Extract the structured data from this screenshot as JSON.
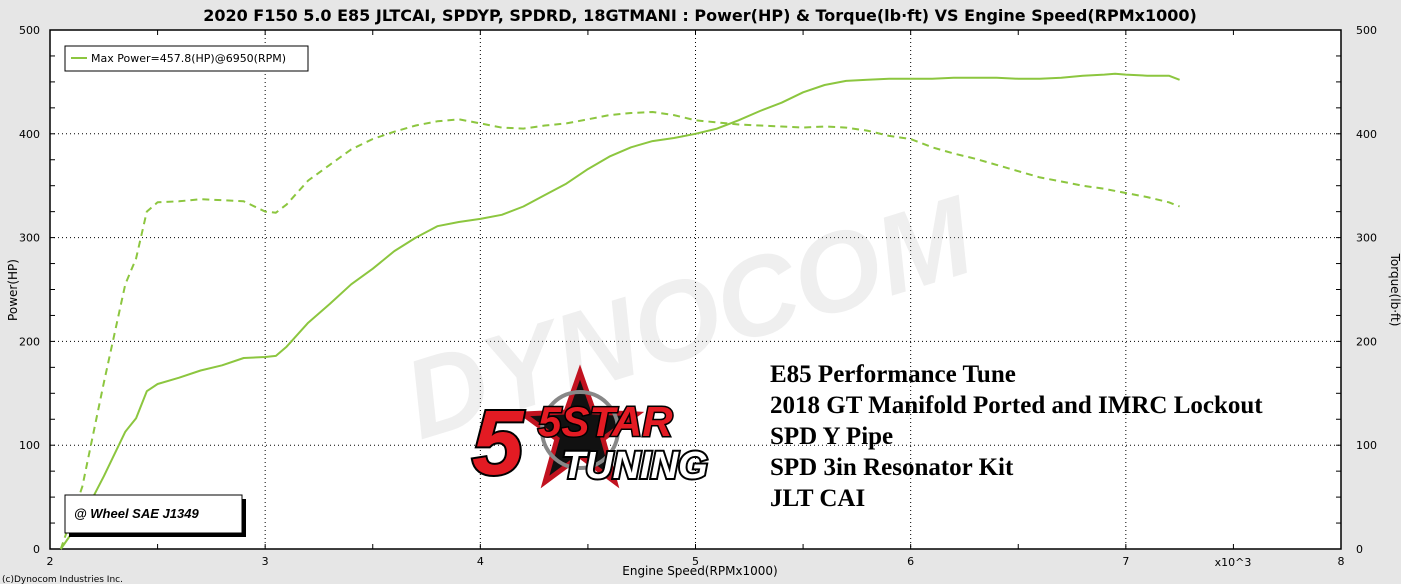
{
  "chart_data": {
    "type": "line",
    "title": "2020 F150 5.0 E85 JLTCAI, SPDYP, SPDRD, 18GTMANI : Power(HP) & Torque(lb·ft) VS Engine Speed(RPMx1000)",
    "xlabel": "Engine Speed(RPMx1000)",
    "ylabel_left": "Power(HP)",
    "ylabel_right": "Torque(lb·ft)",
    "x_multiplier_label": "x10^3",
    "xlim": [
      2,
      8
    ],
    "ylim": [
      0,
      500
    ],
    "x_ticks": [
      "2",
      "3",
      "4",
      "5",
      "6",
      "7",
      "8"
    ],
    "y_ticks": [
      "0",
      "100",
      "200",
      "300",
      "400",
      "500"
    ],
    "grid": true,
    "legend_placement": "top-left",
    "legend_entries": [
      "Max Power=457.8(HP)@6950(RPM)"
    ],
    "series_color": "#8cc63f",
    "series": [
      {
        "name": "Max Power=457.8(HP)@6950(RPM)",
        "style": "solid",
        "points": [
          [
            2.05,
            0
          ],
          [
            2.15,
            30
          ],
          [
            2.25,
            70
          ],
          [
            2.35,
            113
          ],
          [
            2.4,
            126
          ],
          [
            2.45,
            152
          ],
          [
            2.5,
            159
          ],
          [
            2.6,
            165
          ],
          [
            2.7,
            172
          ],
          [
            2.8,
            177
          ],
          [
            2.9,
            184
          ],
          [
            3.0,
            185
          ],
          [
            3.05,
            186
          ],
          [
            3.1,
            195
          ],
          [
            3.2,
            218
          ],
          [
            3.3,
            236
          ],
          [
            3.4,
            255
          ],
          [
            3.5,
            270
          ],
          [
            3.6,
            287
          ],
          [
            3.7,
            300
          ],
          [
            3.8,
            311
          ],
          [
            3.9,
            315
          ],
          [
            4.0,
            318
          ],
          [
            4.1,
            322
          ],
          [
            4.2,
            330
          ],
          [
            4.3,
            341
          ],
          [
            4.4,
            352
          ],
          [
            4.5,
            366
          ],
          [
            4.6,
            378
          ],
          [
            4.7,
            387
          ],
          [
            4.8,
            393
          ],
          [
            4.9,
            396
          ],
          [
            5.0,
            400
          ],
          [
            5.1,
            405
          ],
          [
            5.2,
            413
          ],
          [
            5.3,
            422
          ],
          [
            5.4,
            430
          ],
          [
            5.5,
            440
          ],
          [
            5.6,
            447
          ],
          [
            5.7,
            451
          ],
          [
            5.8,
            452
          ],
          [
            5.9,
            453
          ],
          [
            6.0,
            453
          ],
          [
            6.1,
            453
          ],
          [
            6.2,
            454
          ],
          [
            6.3,
            454
          ],
          [
            6.4,
            454
          ],
          [
            6.5,
            453
          ],
          [
            6.6,
            453
          ],
          [
            6.7,
            454
          ],
          [
            6.8,
            456
          ],
          [
            6.9,
            457
          ],
          [
            6.95,
            457.8
          ],
          [
            7.0,
            457
          ],
          [
            7.1,
            456
          ],
          [
            7.2,
            456
          ],
          [
            7.25,
            452
          ]
        ]
      },
      {
        "name": "",
        "style": "dashed",
        "points": [
          [
            2.05,
            0
          ],
          [
            2.15,
            60
          ],
          [
            2.25,
            160
          ],
          [
            2.35,
            255
          ],
          [
            2.4,
            280
          ],
          [
            2.45,
            325
          ],
          [
            2.5,
            334
          ],
          [
            2.6,
            335
          ],
          [
            2.7,
            337
          ],
          [
            2.8,
            336
          ],
          [
            2.9,
            335
          ],
          [
            3.0,
            325
          ],
          [
            3.05,
            324
          ],
          [
            3.1,
            332
          ],
          [
            3.2,
            355
          ],
          [
            3.3,
            370
          ],
          [
            3.4,
            385
          ],
          [
            3.5,
            395
          ],
          [
            3.6,
            402
          ],
          [
            3.7,
            408
          ],
          [
            3.8,
            412
          ],
          [
            3.9,
            414
          ],
          [
            4.0,
            410
          ],
          [
            4.1,
            406
          ],
          [
            4.2,
            405
          ],
          [
            4.3,
            408
          ],
          [
            4.4,
            410
          ],
          [
            4.5,
            414
          ],
          [
            4.6,
            418
          ],
          [
            4.7,
            420
          ],
          [
            4.8,
            421
          ],
          [
            4.9,
            418
          ],
          [
            5.0,
            413
          ],
          [
            5.1,
            411
          ],
          [
            5.2,
            409
          ],
          [
            5.3,
            408
          ],
          [
            5.4,
            407
          ],
          [
            5.5,
            406
          ],
          [
            5.6,
            407
          ],
          [
            5.7,
            406
          ],
          [
            5.8,
            403
          ],
          [
            5.9,
            398
          ],
          [
            6.0,
            395
          ],
          [
            6.1,
            387
          ],
          [
            6.2,
            381
          ],
          [
            6.3,
            376
          ],
          [
            6.4,
            370
          ],
          [
            6.5,
            364
          ],
          [
            6.6,
            358
          ],
          [
            6.7,
            354
          ],
          [
            6.8,
            350
          ],
          [
            6.9,
            347
          ],
          [
            7.0,
            343
          ],
          [
            7.1,
            339
          ],
          [
            7.2,
            334
          ],
          [
            7.25,
            330
          ]
        ]
      }
    ],
    "annotations": {
      "stamp": "@ Wheel SAE J1349",
      "notes": [
        "E85 Performance Tune",
        "2018 GT Manifold Ported and IMRC Lockout",
        "SPD Y Pipe",
        "SPD 3in Resonator Kit",
        "JLT CAI"
      ],
      "copyright": "(c)Dynocom Industries Inc.",
      "watermark": "DYNOCOM",
      "logo_line1": "5STAR",
      "logo_line2": "TUNING"
    }
  }
}
